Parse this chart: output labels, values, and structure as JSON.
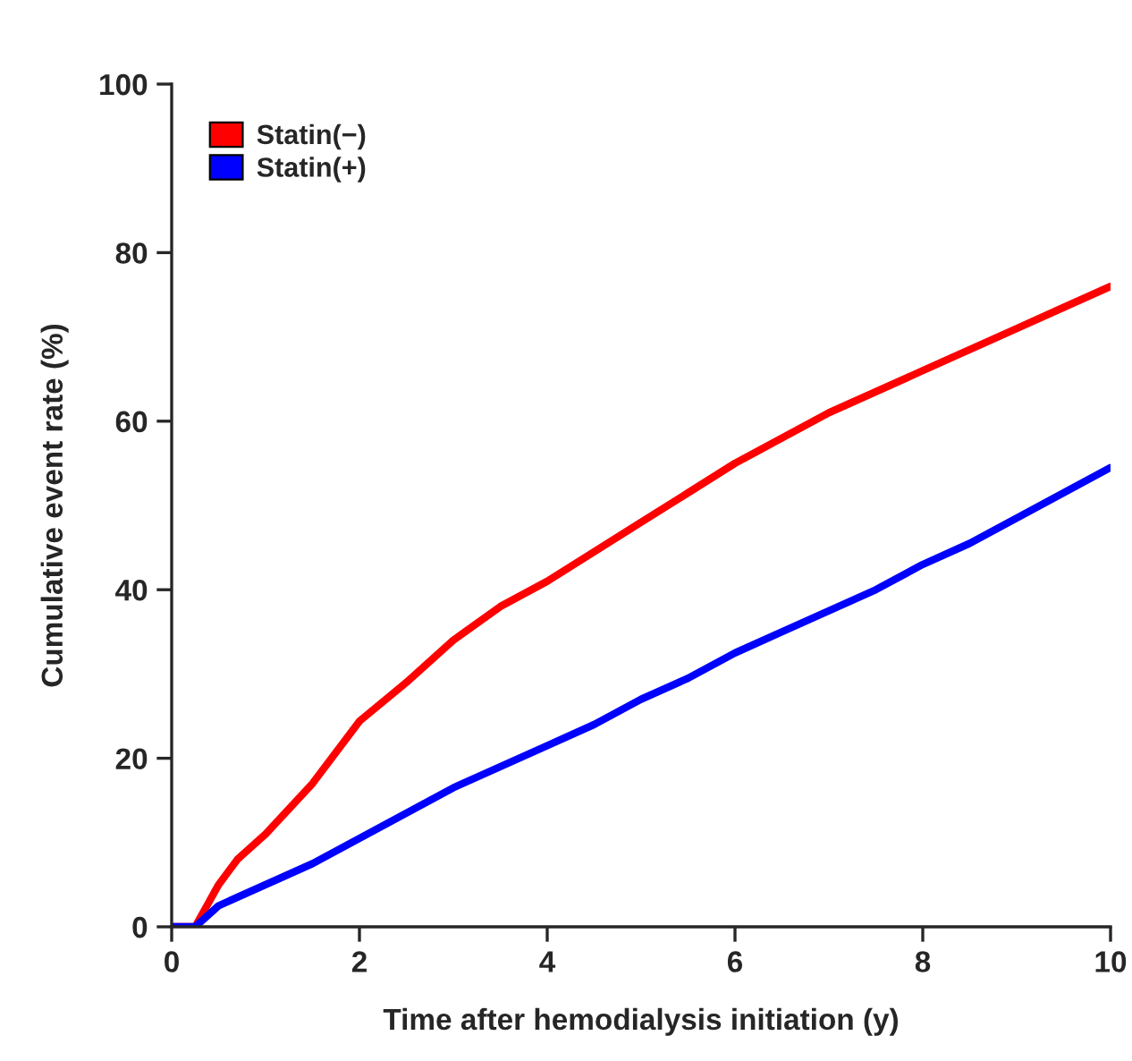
{
  "chart_data": {
    "type": "line",
    "xlabel": "Time after hemodialysis initiation (y)",
    "ylabel": "Cumulative event rate (%)",
    "xlim": [
      0,
      10
    ],
    "ylim": [
      0,
      100
    ],
    "xticks": [
      0,
      2,
      4,
      6,
      8,
      10
    ],
    "yticks": [
      0,
      20,
      40,
      60,
      80,
      100
    ],
    "grid": false,
    "legend": "top left",
    "series": [
      {
        "name": "Statin(−)",
        "color": "#ff0000",
        "x": [
          0,
          0.25,
          0.35,
          0.5,
          0.7,
          1,
          1.5,
          2,
          2.5,
          3,
          3.5,
          4,
          4.5,
          5,
          5.5,
          6,
          6.5,
          7,
          7.5,
          8,
          8.5,
          9,
          9.5,
          10
        ],
        "values": [
          0,
          0,
          2,
          5,
          8,
          11,
          17,
          24.4,
          29,
          34,
          38,
          41,
          44.5,
          48,
          51.5,
          55,
          58,
          61,
          63.5,
          66,
          68.5,
          71,
          73.5,
          76
        ]
      },
      {
        "name": "Statin(+)",
        "color": "#0000ff",
        "x": [
          0,
          0.25,
          0.5,
          1,
          1.5,
          2,
          2.5,
          3,
          3.5,
          4,
          4.5,
          5,
          5.5,
          6,
          6.5,
          7,
          7.5,
          8,
          8.5,
          9,
          9.5,
          10
        ],
        "values": [
          0,
          0,
          2.5,
          5,
          7.5,
          10.5,
          13.5,
          16.5,
          19,
          21.5,
          24,
          27,
          29.5,
          32.5,
          35,
          37.5,
          40,
          43,
          45.5,
          48.5,
          51.5,
          54.5
        ]
      }
    ]
  }
}
